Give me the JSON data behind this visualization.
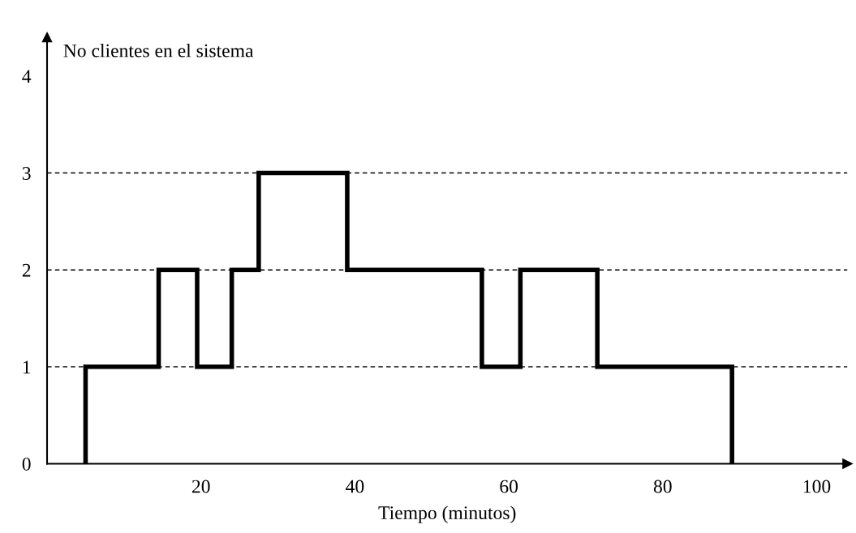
{
  "chart_data": {
    "type": "step",
    "xlabel": "Tiempo (minutos)",
    "ylabel": "No clientes en el sistema",
    "x": [
      5,
      5,
      14.5,
      19.5,
      24,
      27.5,
      39,
      56.5,
      61.5,
      71.5,
      89
    ],
    "values": [
      0,
      1,
      2,
      1,
      2,
      3,
      2,
      1,
      2,
      1,
      0
    ],
    "color": "#000000",
    "xlim": [
      0,
      104
    ],
    "xticks": [
      20,
      40,
      60,
      80,
      100
    ],
    "ylim": [
      0,
      4.4
    ],
    "yticks": [
      0,
      1,
      2,
      3,
      4
    ],
    "ref_lines": [
      {
        "axis": "y",
        "value": 1,
        "color": "#000000",
        "line_style": "dashed"
      },
      {
        "axis": "y",
        "value": 2,
        "color": "#000000",
        "line_style": "dashed"
      },
      {
        "axis": "y",
        "value": 3,
        "color": "#000000",
        "line_style": "dashed"
      }
    ],
    "grid": false,
    "legend": false
  }
}
